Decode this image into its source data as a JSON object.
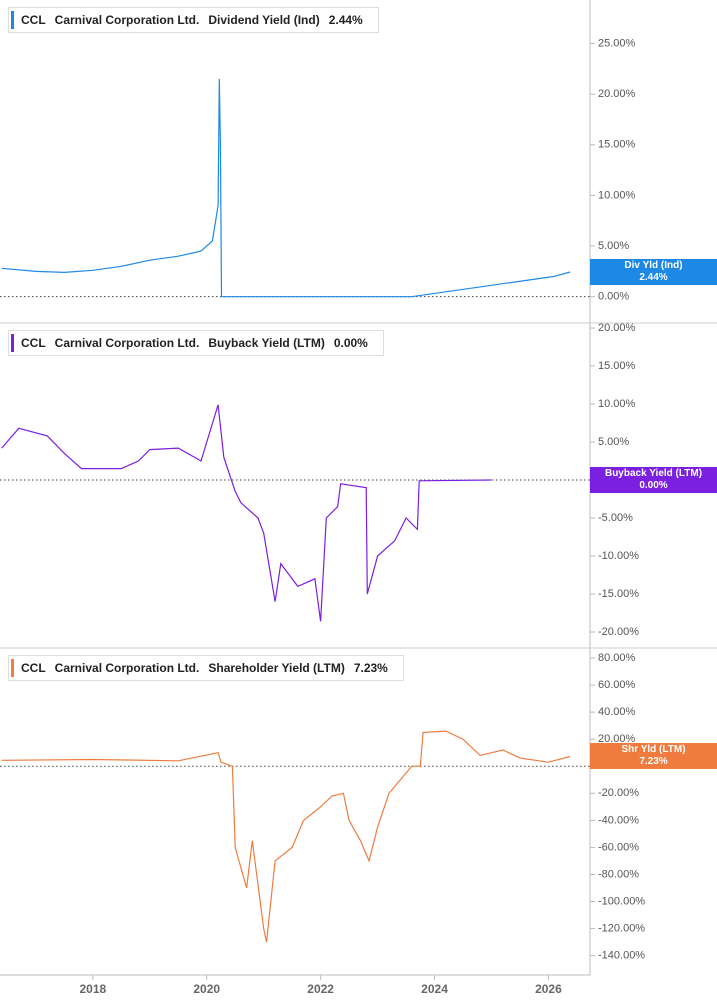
{
  "chart_data": [
    {
      "type": "line",
      "ticker": "CCL",
      "company": "Carnival Corporation Ltd.",
      "last_value": "2.44%",
      "tag_label": "Div Yld (Ind)",
      "zero_line": true,
      "x": [
        2016.4,
        2017.0,
        2017.5,
        2018.0,
        2018.5,
        2019.0,
        2019.5,
        2019.9,
        2020.1,
        2020.2,
        2020.22,
        2020.24,
        2020.26,
        2023.6,
        2026.1,
        2026.38
      ],
      "series": [
        {
          "name": "Dividend Yield (Ind)",
          "color": "#1e88e5",
          "values": [
            2.8,
            2.5,
            2.4,
            2.6,
            3.0,
            3.6,
            4.0,
            4.5,
            5.5,
            9,
            21.5,
            15,
            0,
            0,
            2.0,
            2.44
          ]
        }
      ],
      "xlim": [
        2016.37,
        2026.73
      ],
      "ylim": [
        -2.6,
        29.3
      ],
      "yticks": [
        {
          "value": 0,
          "label": "0.00%"
        },
        {
          "value": 5,
          "label": "5.00%"
        },
        {
          "value": 10,
          "label": "10.00%"
        },
        {
          "value": 15,
          "label": "15.00%"
        },
        {
          "value": 20,
          "label": "20.00%"
        },
        {
          "value": 25,
          "label": "25.00%"
        }
      ]
    },
    {
      "type": "line",
      "ticker": "CCL",
      "company": "Carnival Corporation Ltd.",
      "last_value": "0.00%",
      "tag_label": "Buyback Yield (LTM)",
      "zero_line": true,
      "x": [
        2016.4,
        2016.7,
        2017.2,
        2017.5,
        2017.8,
        2018.5,
        2018.8,
        2019.0,
        2019.5,
        2019.9,
        2020.2,
        2020.3,
        2020.5,
        2020.6,
        2020.9,
        2021.0,
        2021.2,
        2021.3,
        2021.6,
        2021.9,
        2022.0,
        2022.1,
        2022.3,
        2022.35,
        2022.8,
        2022.82,
        2023.0,
        2023.3,
        2023.5,
        2023.7,
        2023.73,
        2025.0
      ],
      "series": [
        {
          "name": "Buyback Yield (LTM)",
          "color": "#7b1fe0",
          "values": [
            4.2,
            6.8,
            5.8,
            3.5,
            1.5,
            1.5,
            2.5,
            4.0,
            4.2,
            2.5,
            9.9,
            3,
            -1.5,
            -3,
            -5,
            -7,
            -16,
            -11,
            -14,
            -13,
            -18.6,
            -5,
            -3.5,
            -0.5,
            -1,
            -15,
            -10,
            -8,
            -5,
            -6.5,
            -0.1,
            0
          ]
        }
      ],
      "xlim": [
        2016.37,
        2026.73
      ],
      "ylim": [
        -22.1,
        20.66
      ],
      "yticks": [
        {
          "value": -20,
          "label": "-20.00%"
        },
        {
          "value": -15,
          "label": "-15.00%"
        },
        {
          "value": -10,
          "label": "-10.00%"
        },
        {
          "value": -5,
          "label": "-5.00%"
        },
        {
          "value": 5,
          "label": "5.00%"
        },
        {
          "value": 10,
          "label": "10.00%"
        },
        {
          "value": 15,
          "label": "15.00%"
        },
        {
          "value": 20,
          "label": "20.00%"
        }
      ]
    },
    {
      "type": "line",
      "ticker": "CCL",
      "company": "Carnival Corporation Ltd.",
      "last_value": "7.23%",
      "tag_label": "Shr Yld (LTM)",
      "zero_line": true,
      "x": [
        2016.4,
        2018.0,
        2019.5,
        2020.2,
        2020.25,
        2020.45,
        2020.5,
        2020.7,
        2020.8,
        2021.0,
        2021.05,
        2021.2,
        2021.5,
        2021.7,
        2022.0,
        2022.2,
        2022.4,
        2022.5,
        2022.7,
        2022.85,
        2023.0,
        2023.2,
        2023.4,
        2023.6,
        2023.75,
        2023.8,
        2024.2,
        2024.5,
        2024.8,
        2025.2,
        2025.5,
        2026.0,
        2026.38
      ],
      "series": [
        {
          "name": "Shareholder Yield (LTM)",
          "color": "#f07b3f",
          "values": [
            4.4,
            5,
            4,
            10,
            3,
            0,
            -60,
            -90,
            -55,
            -120,
            -130,
            -70,
            -60,
            -40,
            -30,
            -22,
            -20,
            -40,
            -55,
            -70,
            -45,
            -20,
            -10,
            0,
            0,
            25,
            26,
            20,
            8,
            12,
            6,
            3,
            7.23
          ]
        }
      ],
      "xlim": [
        2016.37,
        2026.73
      ],
      "ylim": [
        -154.3,
        87.4
      ],
      "yticks": [
        {
          "value": -140,
          "label": "-140.00%"
        },
        {
          "value": -120,
          "label": "-120.00%"
        },
        {
          "value": -100,
          "label": "-100.00%"
        },
        {
          "value": -80,
          "label": "-80.00%"
        },
        {
          "value": -60,
          "label": "-60.00%"
        },
        {
          "value": -40,
          "label": "-40.00%"
        },
        {
          "value": -20,
          "label": "-20.00%"
        },
        {
          "value": 0,
          "label": "0.00%"
        },
        {
          "value": 20,
          "label": "20.00%"
        },
        {
          "value": 40,
          "label": "40.00%"
        },
        {
          "value": 60,
          "label": "60.00%"
        },
        {
          "value": 80,
          "label": "80.00%"
        }
      ],
      "xticks": [
        2018,
        2020,
        2022,
        2024,
        2026
      ]
    }
  ]
}
